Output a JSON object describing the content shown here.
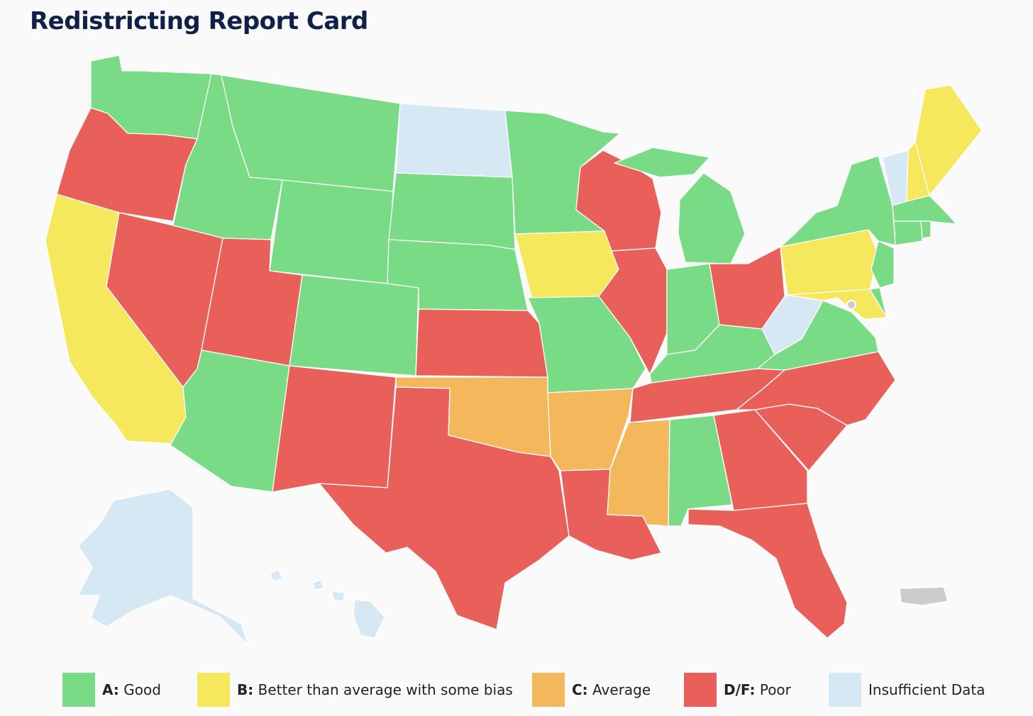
{
  "title": "Redistricting Report Card",
  "colors": {
    "A": "#79db86",
    "B": "#f5e85c",
    "C": "#f4b75b",
    "DF": "#e9605a",
    "NA": "#d6e8f3",
    "territory": "#cccccc",
    "dc": "#cccccc"
  },
  "legend": [
    {
      "key": "A",
      "grade": "A:",
      "label": "Good"
    },
    {
      "key": "B",
      "grade": "B:",
      "label": "Better than average with some bias"
    },
    {
      "key": "C",
      "grade": "C:",
      "label": "Average"
    },
    {
      "key": "DF",
      "grade": "D/F:",
      "label": "Poor"
    },
    {
      "key": "NA",
      "grade": "",
      "label": "Insufficient Data"
    }
  ],
  "states": {
    "WA": "A",
    "OR": "DF",
    "CA": "B",
    "ID": "A",
    "NV": "DF",
    "MT": "A",
    "WY": "A",
    "UT": "DF",
    "AZ": "A",
    "CO": "A",
    "NM": "DF",
    "ND": "NA",
    "SD": "A",
    "NE": "A",
    "KS": "DF",
    "OK": "C",
    "TX": "DF",
    "MN": "A",
    "IA": "B",
    "MO": "A",
    "AR": "C",
    "LA": "DF",
    "WI": "DF",
    "IL": "DF",
    "MS": "C",
    "MI": "A",
    "IN": "A",
    "KY": "A",
    "TN": "DF",
    "AL": "A",
    "OH": "DF",
    "GA": "DF",
    "FL": "DF",
    "SC": "DF",
    "NC": "DF",
    "VA": "A",
    "WV": "NA",
    "PA": "B",
    "NY": "A",
    "VT": "NA",
    "NH": "B",
    "ME": "B",
    "MA": "A",
    "CT": "A",
    "RI": "A",
    "NJ": "A",
    "DE": "A",
    "MD": "B",
    "AK": "NA",
    "HI": "NA"
  }
}
